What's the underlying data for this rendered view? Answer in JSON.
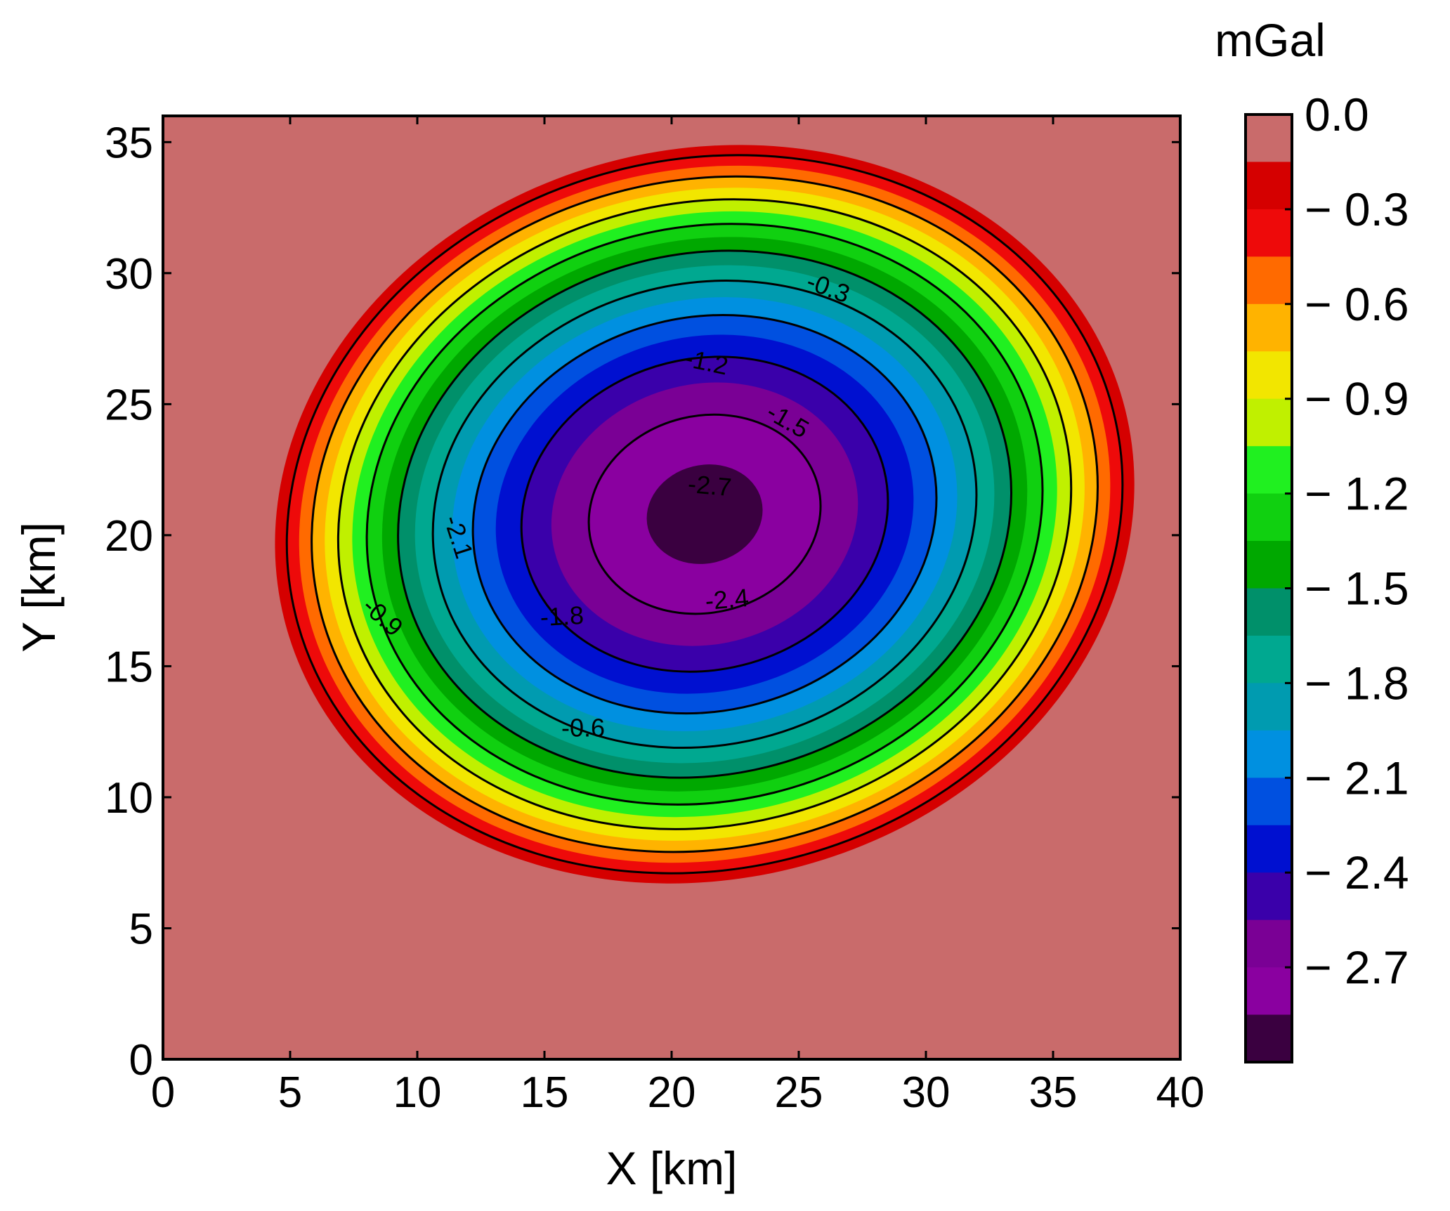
{
  "chart_data": {
    "type": "heatmap",
    "subtype": "filled-contour",
    "title": "",
    "xlabel": "X [km]",
    "ylabel": "Y [km]",
    "xlim": [
      0,
      40
    ],
    "ylim": [
      0,
      36
    ],
    "x_ticks": [
      0,
      5,
      10,
      15,
      20,
      25,
      30,
      35,
      40
    ],
    "y_ticks": [
      0,
      5,
      10,
      15,
      20,
      25,
      30,
      35
    ],
    "anomaly": {
      "minimum_value": -2.9,
      "center": [
        21.3,
        20.8
      ],
      "rx": 17.5,
      "ry": 14.3,
      "rotation_deg": -14
    },
    "colorbar": {
      "unit": "mGal",
      "levels": [
        0.0,
        -0.15,
        -0.3,
        -0.45,
        -0.6,
        -0.75,
        -0.9,
        -1.05,
        -1.2,
        -1.35,
        -1.5,
        -1.65,
        -1.8,
        -1.95,
        -2.1,
        -2.25,
        -2.4,
        -2.55,
        -2.7,
        -2.85
      ],
      "colors": [
        "#c96b6b",
        "#d50000",
        "#ee0a0a",
        "#ff6a00",
        "#ffb300",
        "#f2e600",
        "#c0f000",
        "#20f020",
        "#10d010",
        "#00a800",
        "#00906a",
        "#00a890",
        "#009bb0",
        "#0090e0",
        "#0050e0",
        "#0010d0",
        "#3a00aa",
        "#7a0095",
        "#8a00a0",
        "#3a0040"
      ],
      "tick_labels": [
        "0.0",
        "− 0.3",
        "− 0.6",
        "− 0.9",
        "− 1.2",
        "− 1.5",
        "− 1.8",
        "− 2.1",
        "− 2.4",
        "− 2.7"
      ]
    },
    "contour_lines": [
      -0.3,
      -0.6,
      -0.9,
      -1.2,
      -1.5,
      -1.8,
      -2.1,
      -2.4,
      -2.7
    ],
    "contour_labels": [
      "-0.3",
      "-0.6",
      "-0.9",
      "-1.2",
      "-1.5",
      "-1.8",
      "-2.1",
      "-2.4",
      "-2.7"
    ]
  }
}
